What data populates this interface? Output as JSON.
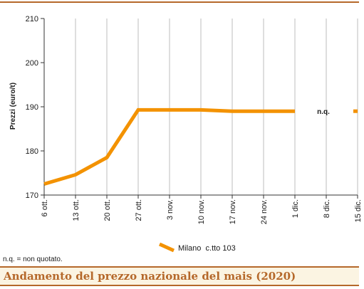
{
  "title": "Andamento del prezzo nazionale del mais (2020)",
  "footnote": "n.q. = non quotato.",
  "colors": {
    "accent": "#b5682a",
    "series": "#f39200",
    "title_bg": "#fbf4e2"
  },
  "chart_data": {
    "type": "line",
    "ylabel": "Prezzi (euro/t)",
    "xlabel": "",
    "ylim": [
      170,
      210
    ],
    "yticks": [
      170,
      180,
      190,
      200,
      210
    ],
    "categories": [
      "6 ott.",
      "13 ott.",
      "20 ott.",
      "27 ott.",
      "3 nov.",
      "10 nov.",
      "17 nov.",
      "24 nov.",
      "1 dic.",
      "8 dic.",
      "15 dic."
    ],
    "grid": "vertical",
    "legend_position": "bottom",
    "annotation": "n.q.",
    "series": [
      {
        "name": "Milano  c.tto 103",
        "values": [
          172.5,
          174.6,
          178.5,
          189.3,
          189.3,
          189.3,
          189.0,
          189.0,
          189.0,
          null,
          189.0
        ]
      }
    ]
  }
}
